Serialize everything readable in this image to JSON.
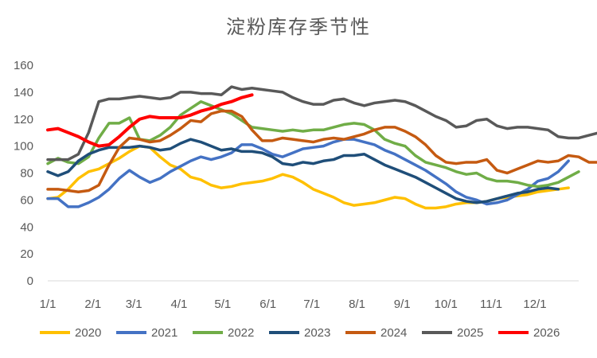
{
  "chart_data": {
    "type": "line",
    "title": "淀粉库存季节性",
    "ylim": [
      0,
      160
    ],
    "yticks": [
      0,
      20,
      40,
      60,
      80,
      100,
      120,
      140,
      160
    ],
    "xlim": [
      0,
      52
    ],
    "xtick_positions": [
      0,
      4.43,
      8.43,
      12.86,
      17.14,
      21.57,
      25.86,
      30.29,
      34.71,
      39,
      43.43,
      47.71
    ],
    "xtick_labels": [
      "1/1",
      "2/1",
      "3/1",
      "4/1",
      "5/1",
      "6/1",
      "7/1",
      "8/1",
      "9/1",
      "10/1",
      "11/1",
      "12/1"
    ],
    "grid": false,
    "legend_position": "bottom",
    "series": [
      {
        "name": "2020",
        "color": "#FFC000",
        "values": [
          61,
          62,
          68,
          76,
          81,
          83,
          87,
          91,
          96,
          100,
          99,
          92,
          86,
          83,
          77,
          75,
          71,
          69,
          70,
          72,
          73,
          74,
          76,
          79,
          77,
          73,
          68,
          65,
          62,
          58,
          56,
          57,
          58,
          60,
          62,
          61,
          57,
          54,
          54,
          55,
          57,
          58,
          58,
          59,
          61,
          62,
          63,
          64,
          66,
          67,
          68,
          69
        ]
      },
      {
        "name": "2021",
        "color": "#4472C4",
        "values": [
          61,
          61,
          55,
          55,
          58,
          62,
          68,
          76,
          82,
          77,
          73,
          76,
          81,
          85,
          89,
          92,
          90,
          92,
          95,
          101,
          101,
          98,
          94,
          92,
          95,
          98,
          99,
          100,
          103,
          105,
          105,
          103,
          101,
          97,
          94,
          90,
          86,
          82,
          77,
          72,
          66,
          62,
          60,
          57,
          58,
          60,
          64,
          68,
          74,
          76,
          81,
          89
        ]
      },
      {
        "name": "2022",
        "color": "#70AD47",
        "values": [
          87,
          91,
          88,
          87,
          92,
          106,
          117,
          117,
          121,
          105,
          104,
          108,
          114,
          123,
          128,
          133,
          130,
          127,
          124,
          119,
          114,
          113,
          112,
          111,
          112,
          111,
          112,
          112,
          114,
          116,
          117,
          116,
          112,
          105,
          102,
          100,
          93,
          88,
          86,
          84,
          81,
          79,
          80,
          76,
          74,
          74,
          73,
          71,
          70,
          71,
          73,
          77,
          81
        ]
      },
      {
        "name": "2023",
        "color": "#1F4E79",
        "values": [
          81,
          78,
          81,
          89,
          94,
          97,
          99,
          99,
          99,
          100,
          99,
          97,
          98,
          102,
          105,
          103,
          100,
          97,
          98,
          96,
          96,
          95,
          92,
          87,
          86,
          88,
          87,
          89,
          90,
          93,
          93,
          94,
          90,
          86,
          83,
          80,
          77,
          73,
          69,
          65,
          61,
          59,
          58,
          59,
          61,
          63,
          65,
          66,
          68,
          69,
          68
        ]
      },
      {
        "name": "2024",
        "color": "#C55A11",
        "values": [
          68,
          68,
          67,
          66,
          67,
          71,
          86,
          99,
          106,
          105,
          103,
          104,
          108,
          113,
          119,
          118,
          124,
          126,
          126,
          122,
          112,
          104,
          104,
          106,
          105,
          104,
          103,
          105,
          106,
          105,
          107,
          109,
          112,
          114,
          114,
          111,
          107,
          101,
          93,
          88,
          87,
          88,
          88,
          90,
          82,
          80,
          83,
          86,
          89,
          88,
          89,
          93,
          92,
          88,
          88
        ]
      },
      {
        "name": "2025",
        "color": "#595959",
        "values": [
          90,
          90,
          90,
          94,
          110,
          133,
          135,
          135,
          136,
          137,
          136,
          135,
          136,
          140,
          140,
          139,
          139,
          138,
          144,
          142,
          143,
          142,
          141,
          140,
          136,
          133,
          131,
          131,
          134,
          135,
          132,
          130,
          132,
          133,
          134,
          133,
          130,
          126,
          122,
          119,
          114,
          115,
          119,
          120,
          115,
          113,
          114,
          114,
          113,
          112,
          107,
          106,
          106,
          108,
          110
        ]
      },
      {
        "name": "2026",
        "color": "#FF0000",
        "values": [
          112,
          113,
          110,
          107,
          103,
          100,
          101,
          107,
          114,
          120,
          122,
          121,
          121,
          121,
          123,
          126,
          128,
          131,
          133,
          136,
          138
        ]
      }
    ]
  }
}
